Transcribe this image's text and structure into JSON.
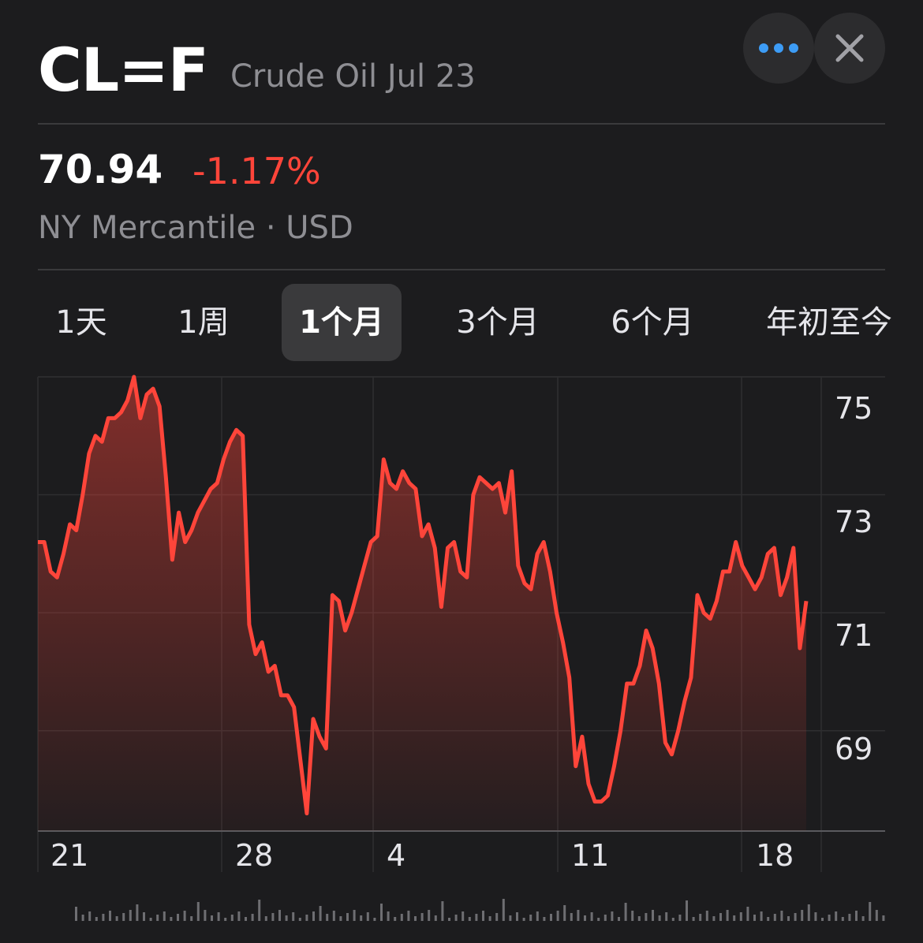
{
  "header": {
    "ticker": "CL=F",
    "name": "Crude Oil Jul 23"
  },
  "buttons": {
    "more_icon": "ellipsis-icon",
    "close_icon": "close-icon"
  },
  "quote": {
    "price": "70.94",
    "change": "-1.17%",
    "exchange": "NY Mercantile · USD"
  },
  "tabs": [
    {
      "label": "1天",
      "active": false
    },
    {
      "label": "1周",
      "active": false
    },
    {
      "label": "1个月",
      "active": true
    },
    {
      "label": "3个月",
      "active": false
    },
    {
      "label": "6个月",
      "active": false
    },
    {
      "label": "年初至今",
      "active": false
    }
  ],
  "colors": {
    "background": "#1c1c1e",
    "accent_negative": "#ff453a",
    "secondary_text": "#8e8e93",
    "more_button_dots": "#3d9cf5"
  },
  "chart_data": {
    "type": "area",
    "y_ticks": [
      "75",
      "73",
      "71",
      "69"
    ],
    "x_ticks": [
      "21",
      "28",
      "4",
      "11",
      "18"
    ],
    "ylim": [
      67.9,
      75.6
    ],
    "grid": true,
    "y_axis_side": "right",
    "series": [
      {
        "values": [
          72.8,
          72.8,
          72.3,
          72.2,
          72.6,
          73.1,
          73.0,
          73.6,
          74.3,
          74.6,
          74.5,
          74.9,
          74.9,
          75.0,
          75.2,
          75.6,
          74.9,
          75.3,
          75.4,
          75.1,
          73.9,
          72.5,
          73.3,
          72.8,
          73.0,
          73.3,
          73.5,
          73.7,
          73.8,
          74.2,
          74.5,
          74.7,
          74.6,
          71.4,
          70.9,
          71.1,
          70.6,
          70.7,
          70.2,
          70.2,
          70.0,
          69.1,
          68.2,
          69.8,
          69.5,
          69.3,
          71.9,
          71.8,
          71.3,
          71.6,
          72.0,
          72.4,
          72.8,
          72.9,
          74.2,
          73.8,
          73.7,
          74.0,
          73.8,
          73.7,
          72.9,
          73.1,
          72.7,
          71.7,
          72.7,
          72.8,
          72.3,
          72.2,
          73.6,
          73.9,
          73.8,
          73.7,
          73.8,
          73.3,
          74.0,
          72.4,
          72.1,
          72.0,
          72.6,
          72.8,
          72.3,
          71.6,
          71.1,
          70.5,
          69.0,
          69.5,
          68.7,
          68.4,
          68.4,
          68.5,
          69.0,
          69.6,
          70.4,
          70.4,
          70.7,
          71.3,
          71.0,
          70.4,
          69.4,
          69.2,
          69.6,
          70.1,
          70.5,
          71.9,
          71.6,
          71.5,
          71.8,
          72.3,
          72.3,
          72.8,
          72.4,
          72.2,
          72.0,
          72.2,
          72.6,
          72.7,
          71.9,
          72.2,
          72.7,
          71.0,
          71.8
        ]
      }
    ]
  }
}
